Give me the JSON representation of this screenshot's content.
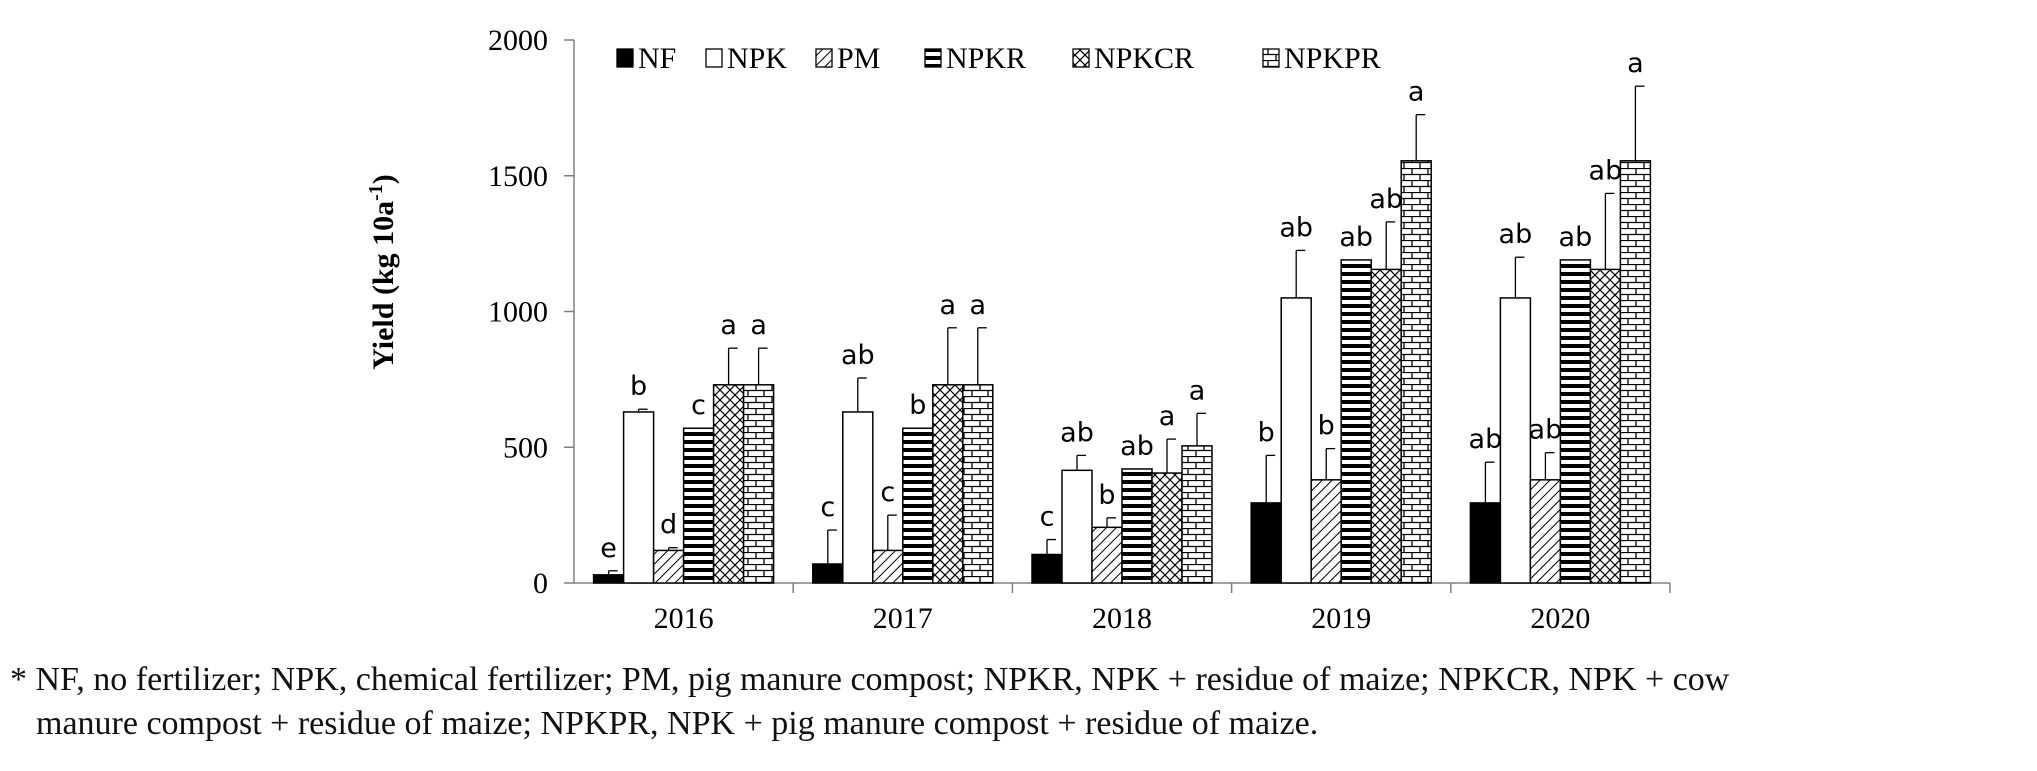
{
  "chart_data": {
    "type": "bar",
    "title": "",
    "xlabel": "",
    "ylabel": "Yield (kg 10a",
    "ylabel_superscript": "-1",
    "ylabel_close": ")",
    "ylim": [
      0,
      2000
    ],
    "yticks": [
      0,
      500,
      1000,
      1500,
      2000
    ],
    "grid": false,
    "legend_position": "top",
    "categories": [
      "2016",
      "2017",
      "2018",
      "2019",
      "2020"
    ],
    "series": [
      {
        "name": "NF",
        "pattern": "solid",
        "values": [
          30,
          70,
          105,
          295,
          295
        ],
        "errors": [
          15,
          125,
          55,
          175,
          150
        ],
        "letters": [
          "e",
          "c",
          "c",
          "b",
          "ab"
        ]
      },
      {
        "name": "NPK",
        "pattern": "empty",
        "values": [
          630,
          630,
          415,
          1050,
          1050
        ],
        "errors": [
          10,
          125,
          55,
          175,
          150
        ],
        "letters": [
          "b",
          "ab",
          "ab",
          "ab",
          "ab"
        ]
      },
      {
        "name": "PM",
        "pattern": "diagonal",
        "values": [
          120,
          120,
          205,
          380,
          380
        ],
        "errors": [
          10,
          130,
          35,
          115,
          100
        ],
        "letters": [
          "d",
          "c",
          "b",
          "b",
          "ab"
        ]
      },
      {
        "name": "NPKR",
        "pattern": "horizontal",
        "values": [
          570,
          570,
          420,
          1190,
          1190
        ],
        "errors": [
          0,
          0,
          0,
          0,
          0
        ],
        "letters": [
          "c",
          "b",
          "ab",
          "ab",
          "ab"
        ]
      },
      {
        "name": "NPKCR",
        "pattern": "crosshatch",
        "values": [
          730,
          730,
          405,
          1155,
          1155
        ],
        "errors": [
          135,
          210,
          125,
          175,
          280
        ],
        "letters": [
          "a",
          "a",
          "a",
          "ab",
          "ab"
        ]
      },
      {
        "name": "NPKPR",
        "pattern": "brick",
        "values": [
          730,
          730,
          505,
          1555,
          1555
        ],
        "errors": [
          135,
          210,
          120,
          170,
          275
        ],
        "letters": [
          "a",
          "a",
          "a",
          "a",
          "a"
        ]
      }
    ],
    "colors": {
      "bar_stroke": "#000000",
      "solid_fill": "#000000",
      "axis": "#808080",
      "text": "#000000"
    }
  },
  "footnote": {
    "line1": "* NF, no fertilizer; NPK, chemical fertilizer; PM, pig manure compost; NPKR, NPK + residue of maize; NPKCR, NPK + cow",
    "line2": "manure compost + residue of maize; NPKPR, NPK + pig manure compost + residue of maize."
  }
}
